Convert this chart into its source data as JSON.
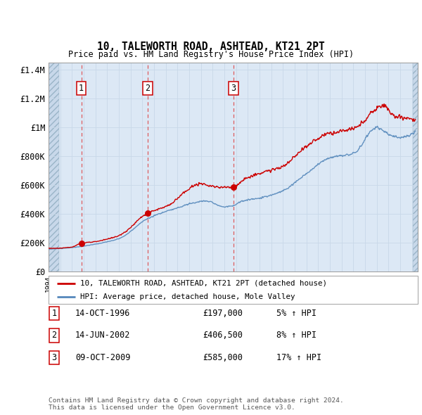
{
  "title": "10, TALEWORTH ROAD, ASHTEAD, KT21 2PT",
  "subtitle": "Price paid vs. HM Land Registry's House Price Index (HPI)",
  "ylabel_ticks": [
    "£0",
    "£200K",
    "£400K",
    "£600K",
    "£800K",
    "£1M",
    "£1.2M",
    "£1.4M"
  ],
  "ytick_values": [
    0,
    200000,
    400000,
    600000,
    800000,
    1000000,
    1200000,
    1400000
  ],
  "ylim": [
    0,
    1450000
  ],
  "xlim_start": 1994.0,
  "xlim_end": 2025.5,
  "bg_color": "#dce8f5",
  "hatch_color": "#b8cede",
  "grid_color": "#c8d8e8",
  "red_line_color": "#cc0000",
  "blue_line_color": "#5588bb",
  "sale_marker_color": "#cc0000",
  "dashed_line_color": "#dd4444",
  "annotation_box_edge": "#cc0000",
  "transactions": [
    {
      "num": 1,
      "date_str": "14-OCT-1996",
      "date_float": 1996.79,
      "price": 197000,
      "pct": "5%"
    },
    {
      "num": 2,
      "date_str": "14-JUN-2002",
      "date_float": 2002.45,
      "price": 406500,
      "pct": "8%"
    },
    {
      "num": 3,
      "date_str": "09-OCT-2009",
      "date_float": 2009.78,
      "price": 585000,
      "pct": "17%"
    }
  ],
  "legend_label_red": "10, TALEWORTH ROAD, ASHTEAD, KT21 2PT (detached house)",
  "legend_label_blue": "HPI: Average price, detached house, Mole Valley",
  "footer": "Contains HM Land Registry data © Crown copyright and database right 2024.\nThis data is licensed under the Open Government Licence v3.0.",
  "table_rows": [
    {
      "num": 1,
      "date": "14-OCT-1996",
      "price": "£197,000",
      "pct": "5% ↑ HPI"
    },
    {
      "num": 2,
      "date": "14-JUN-2002",
      "price": "£406,500",
      "pct": "8% ↑ HPI"
    },
    {
      "num": 3,
      "date": "09-OCT-2009",
      "price": "£585,000",
      "pct": "17% ↑ HPI"
    }
  ],
  "hpi_keypoints": [
    [
      1994.0,
      158000
    ],
    [
      1996.0,
      168000
    ],
    [
      1997.5,
      185000
    ],
    [
      2000.0,
      230000
    ],
    [
      2002.5,
      370000
    ],
    [
      2004.5,
      430000
    ],
    [
      2007.5,
      490000
    ],
    [
      2009.0,
      450000
    ],
    [
      2009.8,
      460000
    ],
    [
      2010.5,
      490000
    ],
    [
      2012.0,
      510000
    ],
    [
      2014.0,
      560000
    ],
    [
      2016.0,
      680000
    ],
    [
      2018.0,
      790000
    ],
    [
      2020.0,
      820000
    ],
    [
      2022.0,
      1000000
    ],
    [
      2023.0,
      950000
    ],
    [
      2024.0,
      930000
    ],
    [
      2025.3,
      970000
    ]
  ],
  "red_keypoints": [
    [
      1994.0,
      162000
    ],
    [
      1996.0,
      172000
    ],
    [
      1996.79,
      197000
    ],
    [
      1998.0,
      210000
    ],
    [
      2000.0,
      250000
    ],
    [
      2002.45,
      406500
    ],
    [
      2004.0,
      450000
    ],
    [
      2007.0,
      610000
    ],
    [
      2008.0,
      590000
    ],
    [
      2009.78,
      585000
    ],
    [
      2010.5,
      630000
    ],
    [
      2012.0,
      680000
    ],
    [
      2014.0,
      730000
    ],
    [
      2016.0,
      870000
    ],
    [
      2018.0,
      960000
    ],
    [
      2020.0,
      990000
    ],
    [
      2022.0,
      1130000
    ],
    [
      2022.5,
      1150000
    ],
    [
      2023.5,
      1080000
    ],
    [
      2024.0,
      1070000
    ],
    [
      2025.3,
      1050000
    ]
  ]
}
